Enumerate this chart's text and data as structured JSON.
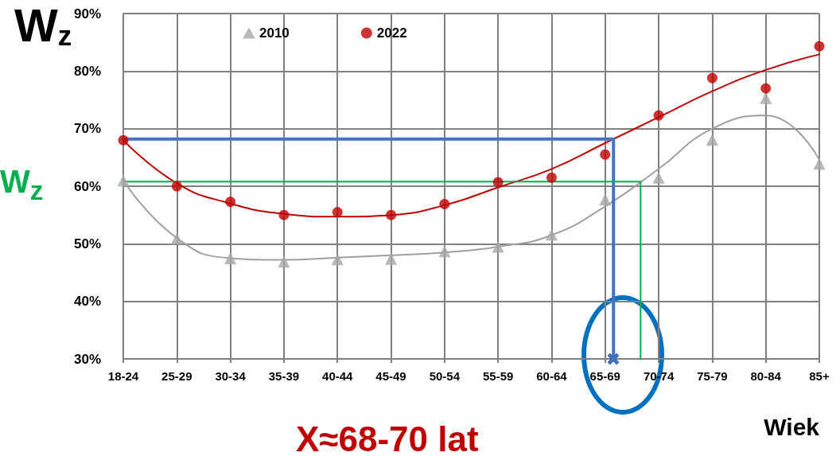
{
  "chart_data": {
    "type": "scatter",
    "ylabel": "W$_{z}$",
    "xlabel": "Wiek",
    "annotations": [
      "X≈68-70 lat"
    ],
    "categories": [
      "18-24",
      "25-29",
      "30-34",
      "35-39",
      "40-44",
      "45-49",
      "50-54",
      "55-59",
      "60-64",
      "65-69",
      "70-74",
      "75-79",
      "80-84",
      "85+"
    ],
    "ylim": [
      30,
      90
    ],
    "yticks": [
      {
        "value": 30,
        "label": "30%"
      },
      {
        "value": 40,
        "label": "40%"
      },
      {
        "value": 50,
        "label": "50%"
      },
      {
        "value": 60,
        "label": "60%"
      },
      {
        "value": 70,
        "label": "70%"
      },
      {
        "value": 80,
        "label": "80%"
      },
      {
        "value": 90,
        "label": "90%"
      }
    ],
    "grid": true,
    "legend": "top",
    "series": [
      {
        "type": "line",
        "color": "#a0a0a0",
        "marker": "none",
        "values": [
          61,
          51,
          47.5,
          47.2,
          47.6,
          48,
          48.5,
          49.5,
          51.5,
          56.5,
          63,
          70,
          72.3,
          64.6
        ]
      },
      {
        "type": "line",
        "color": "#c00000",
        "marker": "none",
        "values": [
          68,
          60.5,
          57,
          55.2,
          54.7,
          55,
          56.7,
          59.8,
          63,
          67.5,
          72,
          76.5,
          80.2,
          82.9
        ]
      },
      {
        "name": "2010",
        "type": "scatter",
        "color": "#a6a6a6",
        "marker": "triangle",
        "values": [
          61,
          50.9,
          47.5,
          46.9,
          47.3,
          47.4,
          48.7,
          49.5,
          51.6,
          57.7,
          61.5,
          68.1,
          75.3,
          63.9
        ]
      },
      {
        "name": "2022",
        "type": "scatter",
        "color": "#c00000",
        "marker": "circle",
        "values": [
          68,
          60,
          57.3,
          55,
          55.5,
          55,
          56.9,
          60.7,
          61.5,
          65.5,
          72.3,
          78.8,
          77,
          84.3
        ]
      }
    ],
    "ref_lines": [
      {
        "axis": "y",
        "value": 68.2,
        "color": "#4472c4"
      },
      {
        "axis": "y",
        "value": 60.8,
        "color": "#00b050",
        "label": "W$_{z}$"
      }
    ]
  }
}
